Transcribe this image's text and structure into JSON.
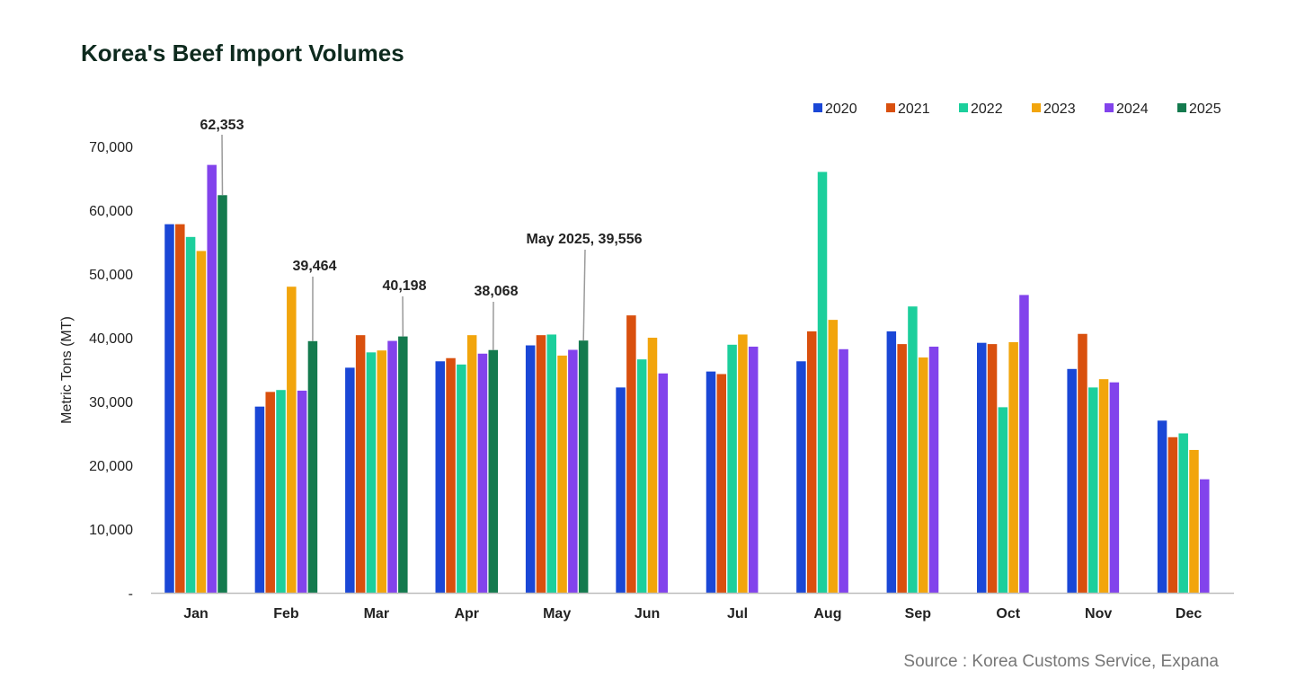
{
  "chart_data": {
    "type": "bar",
    "title": "Korea's Beef Import Volumes",
    "ylabel": "Metric Tons (MT)",
    "xlabel": "",
    "ylim": [
      0,
      70000
    ],
    "y_ticks": [
      0,
      10000,
      20000,
      30000,
      40000,
      50000,
      60000,
      70000
    ],
    "y_tick_labels": [
      "-",
      "10,000",
      "20,000",
      "30,000",
      "40,000",
      "50,000",
      "60,000",
      "70,000"
    ],
    "categories": [
      "Jan",
      "Feb",
      "Mar",
      "Apr",
      "May",
      "Jun",
      "Jul",
      "Aug",
      "Sep",
      "Oct",
      "Nov",
      "Dec"
    ],
    "series": [
      {
        "name": "2020",
        "color": "#1a47d6",
        "values": [
          57800,
          29200,
          35300,
          36300,
          38800,
          32200,
          34700,
          36300,
          41000,
          39200,
          35100,
          27000
        ]
      },
      {
        "name": "2021",
        "color": "#d9500e",
        "values": [
          57800,
          31500,
          40400,
          36800,
          40400,
          43500,
          34300,
          41000,
          39000,
          39000,
          40600,
          24400
        ]
      },
      {
        "name": "2022",
        "color": "#1ccf9c",
        "values": [
          55800,
          31800,
          37700,
          35800,
          40500,
          36600,
          38900,
          66000,
          44900,
          29100,
          32200,
          25000
        ]
      },
      {
        "name": "2023",
        "color": "#f2a50c",
        "values": [
          53600,
          48000,
          38000,
          40400,
          37200,
          40000,
          40500,
          42800,
          36900,
          39300,
          33500,
          22400
        ]
      },
      {
        "name": "2024",
        "color": "#8243ec",
        "values": [
          67100,
          31700,
          39500,
          37500,
          38100,
          34400,
          38600,
          38200,
          38600,
          46700,
          33000,
          17800
        ]
      },
      {
        "name": "2025",
        "color": "#147a4e",
        "values": [
          62353,
          39464,
          40198,
          38068,
          39556,
          null,
          null,
          null,
          null,
          null,
          null,
          null
        ]
      }
    ],
    "annotations": [
      {
        "text": "62,353",
        "category": "Jan",
        "series": "2025"
      },
      {
        "text": "39,464",
        "category": "Feb",
        "series": "2025"
      },
      {
        "text": "40,198",
        "category": "Mar",
        "series": "2025"
      },
      {
        "text": "38,068",
        "category": "Apr",
        "series": "2025"
      },
      {
        "text": "May 2025,  39,556",
        "category": "May",
        "series": "2025"
      }
    ],
    "legend_position": "top-right",
    "grid": false
  },
  "source": "Source : Korea Customs Service, Expana"
}
